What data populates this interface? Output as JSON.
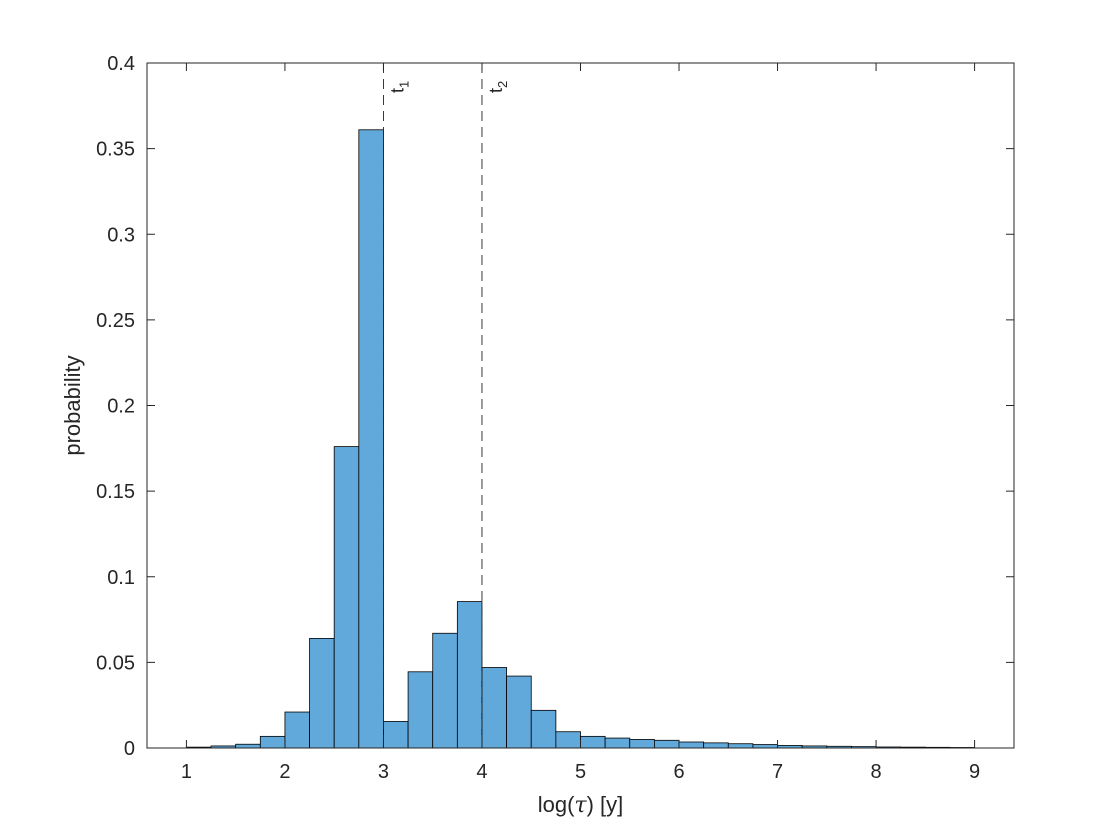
{
  "chart_data": {
    "type": "bar",
    "xlabel_prefix": "log(",
    "xlabel_symbol": "τ",
    "xlabel_suffix": ") [y]",
    "ylabel": "probability",
    "xlim": [
      0.6,
      9.4
    ],
    "ylim": [
      0,
      0.4
    ],
    "xticks": [
      "1",
      "2",
      "3",
      "4",
      "5",
      "6",
      "7",
      "8",
      "9"
    ],
    "yticks": [
      "0",
      "0.05",
      "0.1",
      "0.15",
      "0.2",
      "0.25",
      "0.3",
      "0.35",
      "0.4"
    ],
    "grid": false,
    "bar_color": "#62a9db",
    "bar_edge_color": "#000000",
    "bin_width": 0.25,
    "bin_start": 1.0,
    "values": [
      0.0005,
      0.0012,
      0.0022,
      0.0068,
      0.021,
      0.064,
      0.176,
      0.361,
      0.0155,
      0.0445,
      0.067,
      0.0855,
      0.047,
      0.042,
      0.022,
      0.0095,
      0.0068,
      0.0058,
      0.005,
      0.0045,
      0.0035,
      0.003,
      0.0025,
      0.002,
      0.0015,
      0.0012,
      0.001,
      0.0008,
      0.0006,
      0.0005,
      0.0004,
      0.0003
    ],
    "annotations": [
      {
        "x": 3,
        "label_main": "t",
        "label_sub": "1"
      },
      {
        "x": 4,
        "label_main": "t",
        "label_sub": "2"
      }
    ]
  }
}
